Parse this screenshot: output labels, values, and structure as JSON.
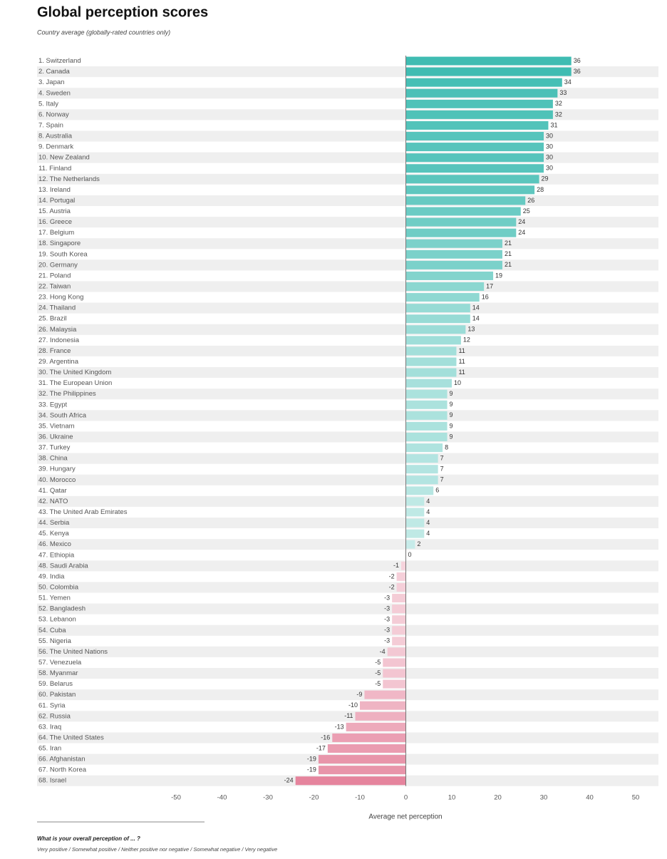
{
  "chart_data": {
    "type": "barh",
    "title": "Global perception scores",
    "subtitle": "Country average (globally-rated countries only)",
    "xlabel": "Average net perception",
    "question": "What is your overall perception of ... ?",
    "answer_scale": "Very positive / Somewhat positive / Neither positive nor negative / Somewhat negative / Very negative",
    "categories": [
      "1. Switzerland",
      "2. Canada",
      "3. Japan",
      "4. Sweden",
      "5. Italy",
      "6. Norway",
      "7. Spain",
      "8. Australia",
      "9. Denmark",
      "10. New Zealand",
      "11. Finland",
      "12. The Netherlands",
      "13. Ireland",
      "14. Portugal",
      "15. Austria",
      "16. Greece",
      "17. Belgium",
      "18. Singapore",
      "19. South Korea",
      "20. Germany",
      "21. Poland",
      "22. Taiwan",
      "23. Hong Kong",
      "24. Thailand",
      "25. Brazil",
      "26. Malaysia",
      "27. Indonesia",
      "28. France",
      "29. Argentina",
      "30. The United Kingdom",
      "31. The European Union",
      "32. The Philippines",
      "33. Egypt",
      "34. South Africa",
      "35. Vietnam",
      "36. Ukraine",
      "37. Turkey",
      "38. China",
      "39. Hungary",
      "40. Morocco",
      "41. Qatar",
      "42. NATO",
      "43. The United Arab Emirates",
      "44. Serbia",
      "45. Kenya",
      "46. Mexico",
      "47. Ethiopia",
      "48. Saudi Arabia",
      "49. India",
      "50. Colombia",
      "51. Yemen",
      "52. Bangladesh",
      "53. Lebanon",
      "54. Cuba",
      "55. Nigeria",
      "56. The United Nations",
      "57. Venezuela",
      "58. Myanmar",
      "59. Belarus",
      "60. Pakistan",
      "61. Syria",
      "62. Russia",
      "63. Iraq",
      "64. The United States",
      "65. Iran",
      "66. Afghanistan",
      "67. North Korea",
      "68. Israel"
    ],
    "values": [
      36,
      36,
      34,
      33,
      32,
      32,
      31,
      30,
      30,
      30,
      30,
      29,
      28,
      26,
      25,
      24,
      24,
      21,
      21,
      21,
      19,
      17,
      16,
      14,
      14,
      13,
      12,
      11,
      11,
      11,
      10,
      9,
      9,
      9,
      9,
      9,
      8,
      7,
      7,
      7,
      6,
      4,
      4,
      4,
      4,
      2,
      0,
      -1,
      -2,
      -2,
      -3,
      -3,
      -3,
      -3,
      -3,
      -4,
      -5,
      -5,
      -5,
      -9,
      -10,
      -11,
      -13,
      -16,
      -17,
      -19,
      -19,
      -24
    ],
    "positive_color": "#3fbcb2",
    "negative_color": "#dc5b7c",
    "xlim": [
      -50,
      50
    ],
    "xticks": [
      -50,
      -40,
      -30,
      -20,
      -10,
      0,
      10,
      20,
      30,
      40,
      50
    ],
    "grid": false
  }
}
